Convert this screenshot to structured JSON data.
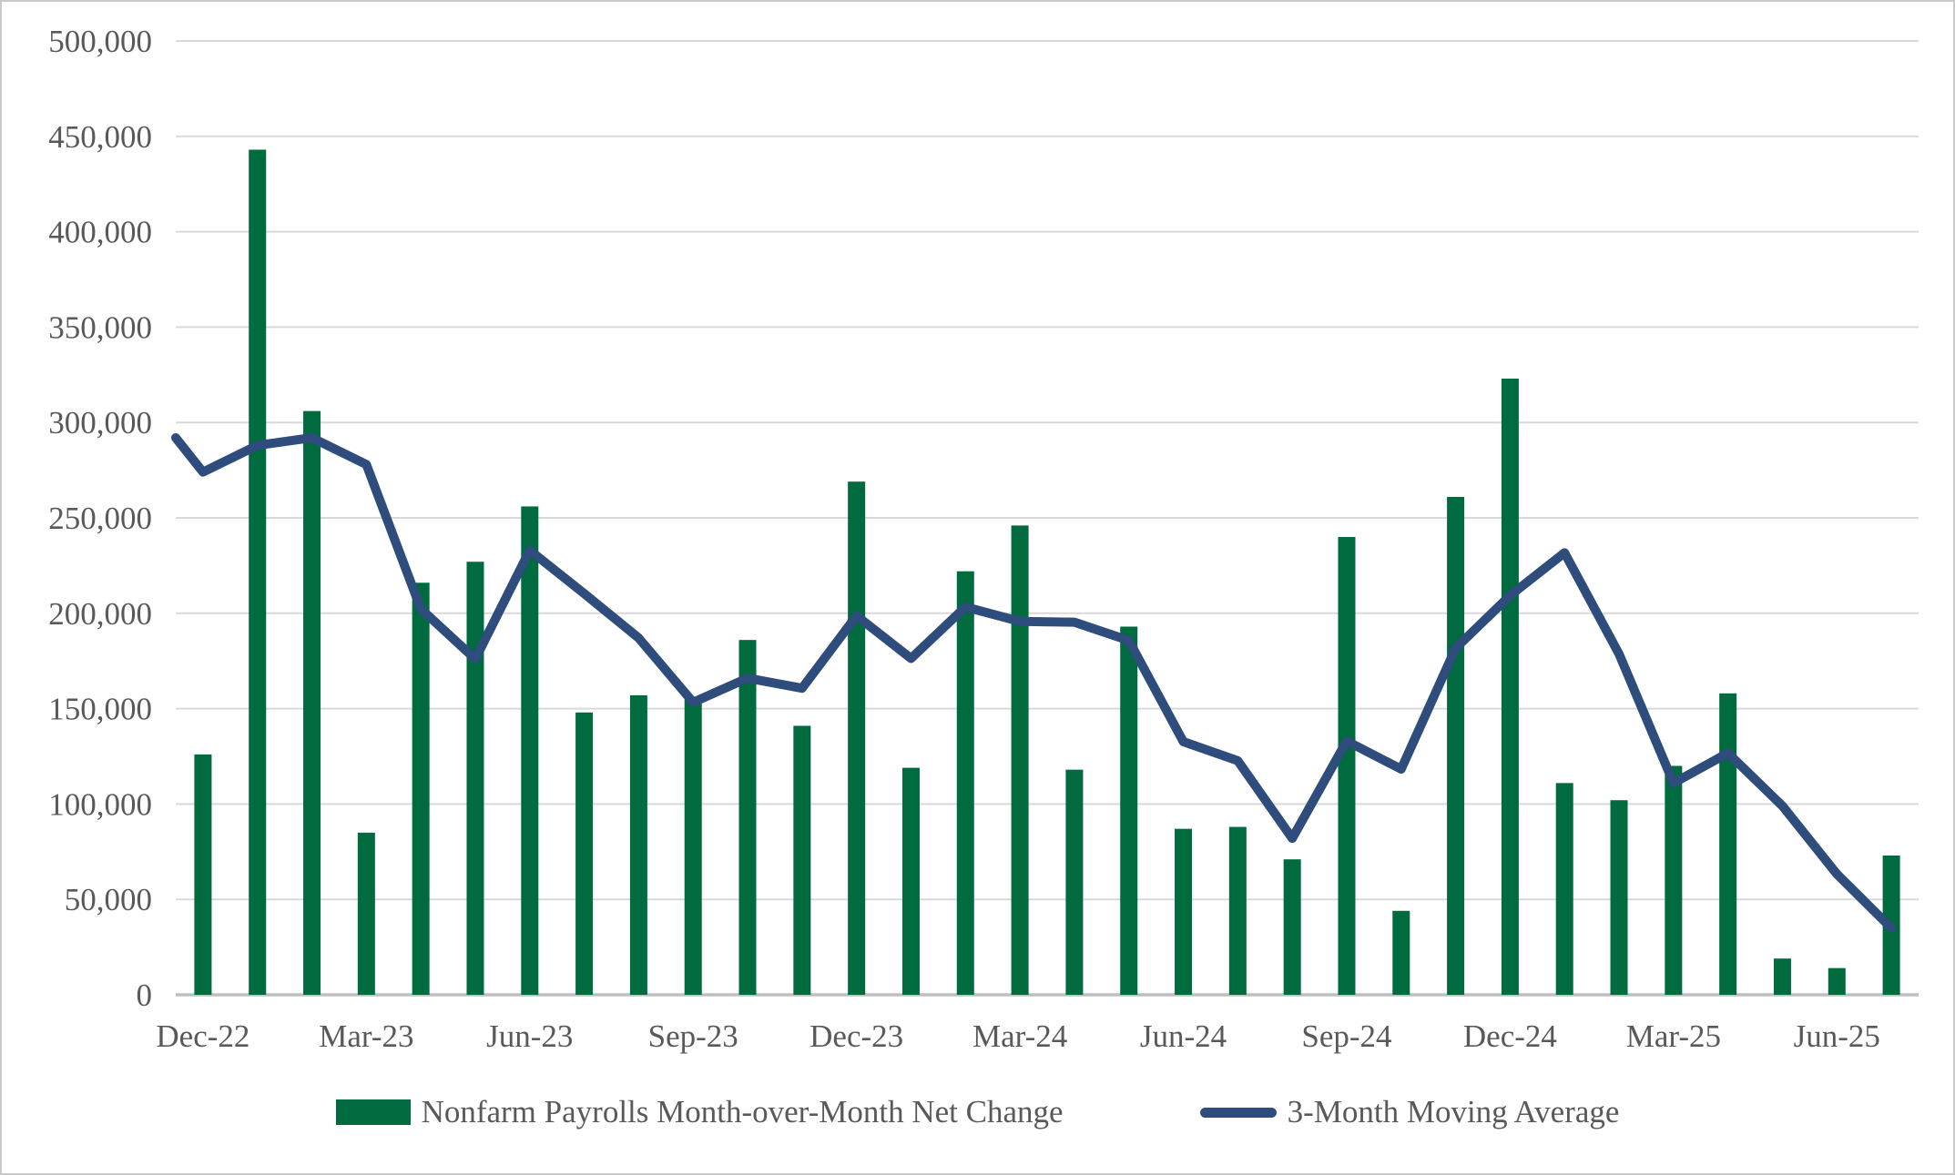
{
  "chart_data": {
    "type": "bar",
    "title": "",
    "categories": [
      "Dec-22",
      "Jan-23",
      "Feb-23",
      "Mar-23",
      "Apr-23",
      "May-23",
      "Jun-23",
      "Jul-23",
      "Aug-23",
      "Sep-23",
      "Oct-23",
      "Nov-23",
      "Dec-23",
      "Jan-24",
      "Feb-24",
      "Mar-24",
      "Apr-24",
      "May-24",
      "Jun-24",
      "Jul-24",
      "Aug-24",
      "Sep-24",
      "Oct-24",
      "Nov-24",
      "Dec-24",
      "Jan-25",
      "Feb-25",
      "Mar-25",
      "Apr-25",
      "May-25",
      "Jun-25",
      "Jul-25"
    ],
    "series": [
      {
        "name": "Nonfarm Payrolls Month-over-Month Net Change",
        "type": "bar",
        "values": [
          126000,
          443000,
          306000,
          85000,
          216000,
          227000,
          256000,
          148000,
          157000,
          155000,
          186000,
          141000,
          269000,
          119000,
          222000,
          246000,
          118000,
          193000,
          87000,
          88000,
          71000,
          240000,
          44000,
          261000,
          323000,
          111000,
          102000,
          120000,
          158000,
          19000,
          14000,
          73000
        ]
      },
      {
        "name": "3-Month Moving Average",
        "type": "line",
        "edge_start_value": 292000,
        "values": [
          274000,
          288000,
          292000,
          278000,
          202300,
          176000,
          233000,
          210300,
          187000,
          153300,
          166000,
          160700,
          198700,
          176300,
          203300,
          195700,
          195300,
          185700,
          132700,
          122700,
          82000,
          133000,
          118300,
          181700,
          209300,
          231700,
          178700,
          111000,
          126700,
          99000,
          63300,
          35000
        ]
      }
    ],
    "x_tick_labels": [
      "Dec-22",
      "Mar-23",
      "Jun-23",
      "Sep-23",
      "Dec-23",
      "Mar-24",
      "Jun-24",
      "Sep-24",
      "Dec-24",
      "Mar-25",
      "Jun-25"
    ],
    "x_tick_every": 3,
    "y_axis": {
      "min": 0,
      "max": 500000,
      "step": 50000,
      "tick_labels": [
        "0",
        "50,000",
        "100,000",
        "150,000",
        "200,000",
        "250,000",
        "300,000",
        "350,000",
        "400,000",
        "450,000",
        "500,000"
      ]
    },
    "grid": true,
    "legend_position": "bottom"
  },
  "legend": {
    "items": [
      {
        "label": "Nonfarm Payrolls Month-over-Month Net Change"
      },
      {
        "label": "3-Month Moving Average"
      }
    ]
  },
  "colors": {
    "bar": "#016B40",
    "line": "#2E4C7C",
    "grid": "#D9D9D9",
    "axis": "#BFBFBF",
    "text": "#595959",
    "border": "#C9C9C9"
  },
  "geometry_labels": {
    "y_axis_side": "left",
    "x_axis_side": "bottom"
  }
}
